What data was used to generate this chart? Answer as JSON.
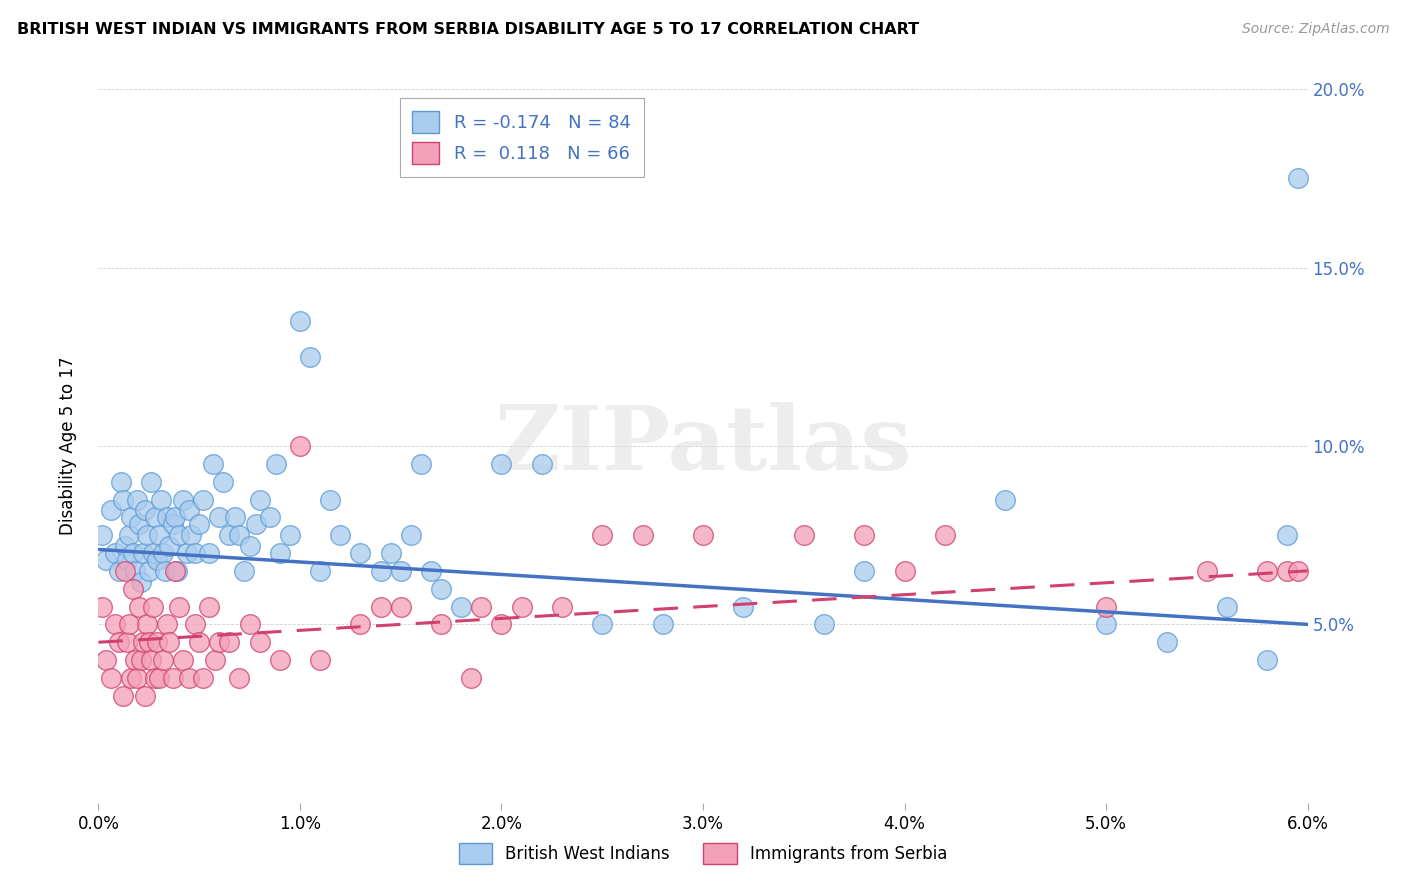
{
  "title": "BRITISH WEST INDIAN VS IMMIGRANTS FROM SERBIA DISABILITY AGE 5 TO 17 CORRELATION CHART",
  "source": "Source: ZipAtlas.com",
  "ylabel": "Disability Age 5 to 17",
  "series1_label": "British West Indians",
  "series2_label": "Immigrants from Serbia",
  "R1": -0.174,
  "N1": 84,
  "R2": 0.118,
  "N2": 66,
  "series1_color": "#aaccee",
  "series1_edge": "#5b9bd5",
  "series2_color": "#f4a0b8",
  "series2_edge": "#d04070",
  "line1_color": "#4472c4",
  "line2_color": "#d04070",
  "watermark": "ZIPatlas",
  "xlim": [
    0,
    6.0
  ],
  "ylim": [
    0,
    20.0
  ],
  "xticks": [
    0,
    1,
    2,
    3,
    4,
    5,
    6
  ],
  "yticks_right": [
    5,
    10,
    15,
    20
  ],
  "line1_x0": 0.0,
  "line1_y0": 7.1,
  "line1_x1": 6.0,
  "line1_y1": 5.0,
  "line2_x0": 0.0,
  "line2_y0": 4.5,
  "line2_x1": 6.0,
  "line2_y1": 6.5,
  "s1_x": [
    0.02,
    0.04,
    0.06,
    0.08,
    0.1,
    0.11,
    0.12,
    0.13,
    0.14,
    0.15,
    0.16,
    0.17,
    0.18,
    0.19,
    0.2,
    0.21,
    0.22,
    0.23,
    0.24,
    0.25,
    0.26,
    0.27,
    0.28,
    0.29,
    0.3,
    0.31,
    0.32,
    0.33,
    0.34,
    0.35,
    0.37,
    0.38,
    0.39,
    0.4,
    0.42,
    0.44,
    0.45,
    0.46,
    0.48,
    0.5,
    0.52,
    0.55,
    0.57,
    0.6,
    0.62,
    0.65,
    0.68,
    0.7,
    0.72,
    0.75,
    0.78,
    0.8,
    0.85,
    0.88,
    0.9,
    0.95,
    1.0,
    1.05,
    1.1,
    1.15,
    1.2,
    1.3,
    1.4,
    1.5,
    1.6,
    1.7,
    1.8,
    2.0,
    2.2,
    2.5,
    2.8,
    3.2,
    3.6,
    3.8,
    4.5,
    5.0,
    5.3,
    5.6,
    5.8,
    5.9,
    5.95,
    1.45,
    1.55,
    1.65
  ],
  "s1_y": [
    7.5,
    6.8,
    8.2,
    7.0,
    6.5,
    9.0,
    8.5,
    7.2,
    6.8,
    7.5,
    8.0,
    7.0,
    6.5,
    8.5,
    7.8,
    6.2,
    7.0,
    8.2,
    7.5,
    6.5,
    9.0,
    7.0,
    8.0,
    6.8,
    7.5,
    8.5,
    7.0,
    6.5,
    8.0,
    7.2,
    7.8,
    8.0,
    6.5,
    7.5,
    8.5,
    7.0,
    8.2,
    7.5,
    7.0,
    7.8,
    8.5,
    7.0,
    9.5,
    8.0,
    9.0,
    7.5,
    8.0,
    7.5,
    6.5,
    7.2,
    7.8,
    8.5,
    8.0,
    9.5,
    7.0,
    7.5,
    13.5,
    12.5,
    6.5,
    8.5,
    7.5,
    7.0,
    6.5,
    6.5,
    9.5,
    6.0,
    5.5,
    9.5,
    9.5,
    5.0,
    5.0,
    5.5,
    5.0,
    6.5,
    8.5,
    5.0,
    4.5,
    5.5,
    4.0,
    7.5,
    17.5,
    7.0,
    7.5,
    6.5
  ],
  "s2_x": [
    0.02,
    0.04,
    0.06,
    0.08,
    0.1,
    0.12,
    0.13,
    0.14,
    0.15,
    0.16,
    0.17,
    0.18,
    0.19,
    0.2,
    0.21,
    0.22,
    0.23,
    0.24,
    0.25,
    0.26,
    0.27,
    0.28,
    0.29,
    0.3,
    0.32,
    0.34,
    0.35,
    0.37,
    0.38,
    0.4,
    0.42,
    0.45,
    0.48,
    0.5,
    0.52,
    0.55,
    0.58,
    0.6,
    0.65,
    0.7,
    0.75,
    0.8,
    0.9,
    1.0,
    1.1,
    1.3,
    1.4,
    1.5,
    1.7,
    1.9,
    2.0,
    2.3,
    2.5,
    2.7,
    3.0,
    3.5,
    3.8,
    4.0,
    4.2,
    5.0,
    5.5,
    5.8,
    5.9,
    5.95,
    1.85,
    2.1
  ],
  "s2_y": [
    5.5,
    4.0,
    3.5,
    5.0,
    4.5,
    3.0,
    6.5,
    4.5,
    5.0,
    3.5,
    6.0,
    4.0,
    3.5,
    5.5,
    4.0,
    4.5,
    3.0,
    5.0,
    4.5,
    4.0,
    5.5,
    3.5,
    4.5,
    3.5,
    4.0,
    5.0,
    4.5,
    3.5,
    6.5,
    5.5,
    4.0,
    3.5,
    5.0,
    4.5,
    3.5,
    5.5,
    4.0,
    4.5,
    4.5,
    3.5,
    5.0,
    4.5,
    4.0,
    10.0,
    4.0,
    5.0,
    5.5,
    5.5,
    5.0,
    5.5,
    5.0,
    5.5,
    7.5,
    7.5,
    7.5,
    7.5,
    7.5,
    6.5,
    7.5,
    5.5,
    6.5,
    6.5,
    6.5,
    6.5,
    3.5,
    5.5
  ]
}
